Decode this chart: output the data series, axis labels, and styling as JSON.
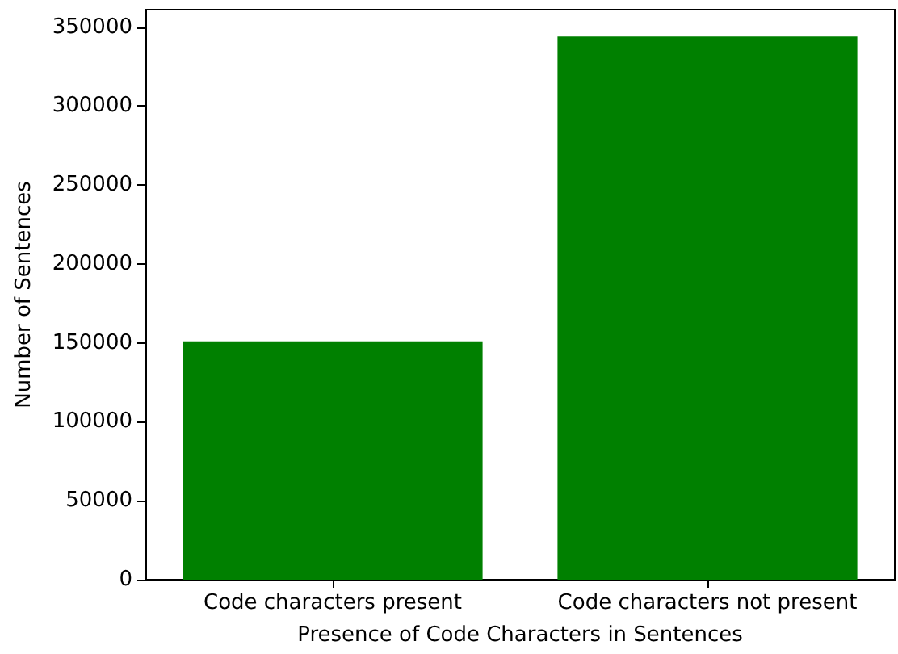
{
  "chart_data": {
    "type": "bar",
    "xlabel": "Presence of Code Characters in Sentences",
    "ylabel": "Number of Sentences",
    "categories": [
      "Code characters present",
      "Code characters not present"
    ],
    "values": [
      151000,
      344000
    ],
    "color": "#008000",
    "ylim": [
      0,
      361000
    ],
    "yticks": [
      0,
      50000,
      100000,
      150000,
      200000,
      250000,
      300000,
      350000
    ],
    "grid": false
  }
}
